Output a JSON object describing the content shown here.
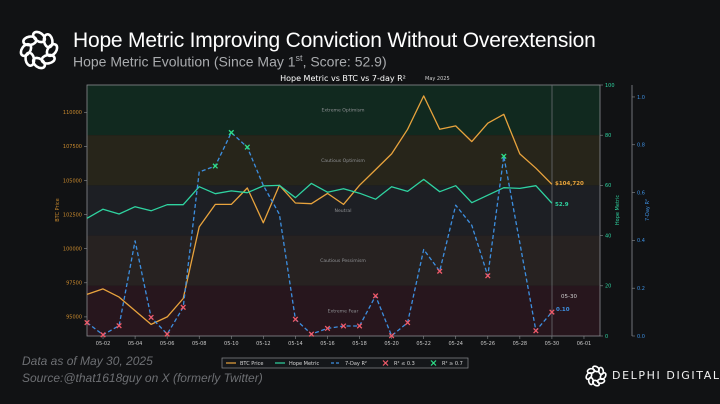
{
  "header": {
    "title": "Hope Metric Improving Conviction Without Overextension",
    "subtitle_prefix": "Hope Metric Evolution (Since May 1",
    "subtitle_sup": "st",
    "subtitle_suffix": ", Score: 52.9)"
  },
  "footer": {
    "data_as_of": "Data as of May 30, 2025",
    "source": "Source:@that1618guy  on X (formerly Twitter)",
    "brand": "DELPHI DIGITAL",
    "brand_icon": "delphi-knot-logo"
  },
  "chart_data": {
    "type": "line",
    "title": "Hope Metric vs BTC vs 7-day R²",
    "title_note": "May 2025",
    "x": [
      "05-01",
      "05-02",
      "05-03",
      "05-04",
      "05-05",
      "05-06",
      "05-07",
      "05-08",
      "05-09",
      "05-10",
      "05-11",
      "05-12",
      "05-13",
      "05-14",
      "05-15",
      "05-16",
      "05-17",
      "05-18",
      "05-19",
      "05-20",
      "05-21",
      "05-22",
      "05-23",
      "05-24",
      "05-25",
      "05-26",
      "05-27",
      "05-28",
      "05-29",
      "05-30"
    ],
    "x_ticks": [
      "05-02",
      "05-04",
      "05-06",
      "05-08",
      "05-10",
      "05-12",
      "05-14",
      "05-16",
      "05-18",
      "05-20",
      "05-22",
      "05-24",
      "05-26",
      "05-28",
      "05-30",
      "06-01"
    ],
    "series": [
      {
        "name": "BTC Price",
        "axis": "left",
        "color": "#e8a33d",
        "values": [
          96650,
          97050,
          96450,
          95450,
          94450,
          95000,
          96350,
          101600,
          103250,
          103250,
          104450,
          101900,
          104650,
          103350,
          103300,
          104050,
          103250,
          104650,
          105800,
          106950,
          108750,
          111200,
          108750,
          109000,
          107850,
          109200,
          109850,
          106950,
          105900,
          104720
        ]
      },
      {
        "name": "Hope Metric",
        "axis": "right",
        "color": "#2fd3a0",
        "values": [
          46.9,
          50.5,
          48.6,
          51.5,
          49.9,
          52.3,
          52.3,
          59.5,
          56.7,
          57.8,
          57.1,
          59.8,
          60.0,
          55.1,
          60.8,
          57.3,
          58.7,
          56.9,
          54.5,
          59.5,
          57.6,
          62.4,
          57.5,
          59.9,
          53.1,
          56.1,
          59.1,
          58.8,
          59.9,
          52.9
        ]
      },
      {
        "name": "7-Day R²",
        "axis": "right2",
        "color": "#3d8fe0",
        "dashed": true,
        "values": [
          0.056,
          0.005,
          0.043,
          0.398,
          0.078,
          0.008,
          0.12,
          0.686,
          0.711,
          0.851,
          0.79,
          0.63,
          0.509,
          0.07,
          0.008,
          0.032,
          0.042,
          0.042,
          0.168,
          0.001,
          0.056,
          0.362,
          0.271,
          0.547,
          0.463,
          0.252,
          0.752,
          0.39,
          0.022,
          0.1
        ]
      }
    ],
    "markers": {
      "low": {
        "label": "R² ≤ 0.3",
        "threshold": 0.3,
        "color": "#f05a6a"
      },
      "high": {
        "label": "R² ≥ 0.7",
        "threshold": 0.7,
        "color": "#2ee089"
      }
    },
    "legend": [
      "BTC Price",
      "Hope Metric",
      "7-Day R²",
      "R² ≤ 0.3",
      "R² ≥ 0.7"
    ],
    "legend_position": "bottom-center",
    "axes": {
      "left": {
        "label": "BTC Price",
        "ylim": [
          93600,
          112000
        ],
        "ticks": [
          "95000",
          "97500",
          "100000",
          "102500",
          "105000",
          "107500",
          "110000"
        ],
        "color": "#c8892e"
      },
      "right": {
        "label": "Hope Metric",
        "ylim": [
          0,
          100
        ],
        "ticks": [
          "0",
          "20",
          "40",
          "60",
          "80",
          "100"
        ],
        "color": "#2fd3a0"
      },
      "right2": {
        "label": "7-Day R²",
        "ylim": [
          0,
          1.05
        ],
        "ticks": [
          "0.0",
          "0.2",
          "0.4",
          "0.6",
          "0.8",
          "1.0"
        ],
        "color": "#3d8fe0"
      }
    },
    "zones": [
      {
        "label": "Extreme Optimism",
        "from": 80,
        "to": 100,
        "color": "#11291f"
      },
      {
        "label": "Cautious Optimism",
        "from": 60,
        "to": 80,
        "color": "#27251a"
      },
      {
        "label": "Neutral",
        "from": 40,
        "to": 60,
        "color": "#1d1f24"
      },
      {
        "label": "Cautious Pessimism",
        "from": 20,
        "to": 40,
        "color": "#272221"
      },
      {
        "label": "Extreme Fear",
        "from": 0,
        "to": 20,
        "color": "#27161d"
      }
    ],
    "annotations": {
      "date": "05-30",
      "btc_last": "$104,720",
      "hope_last": "52.9",
      "r2_last": "0.10"
    }
  }
}
